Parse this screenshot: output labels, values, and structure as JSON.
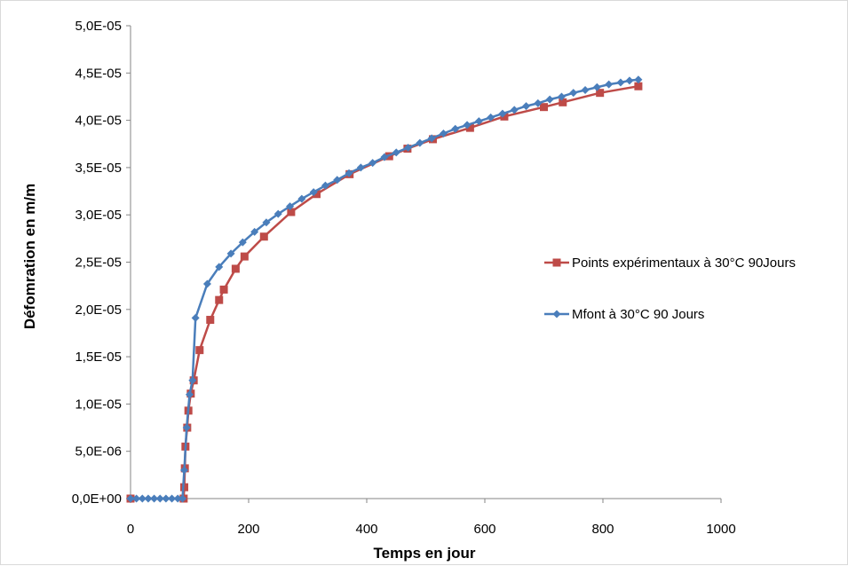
{
  "chart_data": {
    "type": "line",
    "xlabel": "Temps en jour",
    "ylabel": "Défomration en m/m",
    "xlim": [
      0,
      1000
    ],
    "ylim": [
      0,
      5e-05
    ],
    "grid": false,
    "legend_position": "right",
    "x_ticks": [
      {
        "value": 0,
        "label": "0"
      },
      {
        "value": 200,
        "label": "200"
      },
      {
        "value": 400,
        "label": "400"
      },
      {
        "value": 600,
        "label": "600"
      },
      {
        "value": 800,
        "label": "800"
      },
      {
        "value": 1000,
        "label": "1000"
      }
    ],
    "y_ticks": [
      {
        "value": 0,
        "label": "0,0E+00"
      },
      {
        "value": 5e-06,
        "label": "5,0E-06"
      },
      {
        "value": 1e-05,
        "label": "1,0E-05"
      },
      {
        "value": 1.5e-05,
        "label": "1,5E-05"
      },
      {
        "value": 2e-05,
        "label": "2,0E-05"
      },
      {
        "value": 2.5e-05,
        "label": "2,5E-05"
      },
      {
        "value": 3e-05,
        "label": "3,0E-05"
      },
      {
        "value": 3.5e-05,
        "label": "3,5E-05"
      },
      {
        "value": 4e-05,
        "label": "4,0E-05"
      },
      {
        "value": 4.5e-05,
        "label": "4,5E-05"
      },
      {
        "value": 5e-05,
        "label": "5,0E-05"
      }
    ],
    "series": [
      {
        "name": "Points expérimentaux  à 30°C 90Jours",
        "color": "#be4b48",
        "marker": "square",
        "points": [
          [
            0,
            0
          ],
          [
            90,
            0
          ],
          [
            91,
            1.2e-06
          ],
          [
            92,
            3.2e-06
          ],
          [
            93,
            5.5e-06
          ],
          [
            96,
            7.5e-06
          ],
          [
            98,
            9.3e-06
          ],
          [
            102,
            1.11e-05
          ],
          [
            107,
            1.25e-05
          ],
          [
            117,
            1.57e-05
          ],
          [
            135,
            1.89e-05
          ],
          [
            150,
            2.1e-05
          ],
          [
            158,
            2.21e-05
          ],
          [
            178,
            2.43e-05
          ],
          [
            193,
            2.56e-05
          ],
          [
            226,
            2.77e-05
          ],
          [
            272,
            3.03e-05
          ],
          [
            315,
            3.22e-05
          ],
          [
            371,
            3.43e-05
          ],
          [
            438,
            3.62e-05
          ],
          [
            469,
            3.7e-05
          ],
          [
            512,
            3.8e-05
          ],
          [
            575,
            3.92e-05
          ],
          [
            633,
            4.04e-05
          ],
          [
            700,
            4.14e-05
          ],
          [
            732,
            4.19e-05
          ],
          [
            795,
            4.29e-05
          ],
          [
            860,
            4.36e-05
          ]
        ]
      },
      {
        "name": "Mfont à 30°C 90 Jours",
        "color": "#4a7ebb",
        "marker": "diamond",
        "points": [
          [
            0,
            0
          ],
          [
            10,
            0
          ],
          [
            20,
            0
          ],
          [
            30,
            0
          ],
          [
            40,
            0
          ],
          [
            50,
            0
          ],
          [
            60,
            0
          ],
          [
            70,
            0
          ],
          [
            80,
            0
          ],
          [
            88,
            0
          ],
          [
            91,
            3e-06
          ],
          [
            95,
            7.5e-06
          ],
          [
            100,
            1.1e-05
          ],
          [
            105,
            1.25e-05
          ],
          [
            110,
            1.91e-05
          ],
          [
            130,
            2.27e-05
          ],
          [
            150,
            2.45e-05
          ],
          [
            170,
            2.59e-05
          ],
          [
            190,
            2.71e-05
          ],
          [
            210,
            2.82e-05
          ],
          [
            230,
            2.92e-05
          ],
          [
            250,
            3.01e-05
          ],
          [
            270,
            3.09e-05
          ],
          [
            290,
            3.17e-05
          ],
          [
            310,
            3.24e-05
          ],
          [
            330,
            3.31e-05
          ],
          [
            350,
            3.37e-05
          ],
          [
            370,
            3.44e-05
          ],
          [
            390,
            3.5e-05
          ],
          [
            410,
            3.55e-05
          ],
          [
            430,
            3.61e-05
          ],
          [
            450,
            3.66e-05
          ],
          [
            470,
            3.71e-05
          ],
          [
            490,
            3.76e-05
          ],
          [
            510,
            3.81e-05
          ],
          [
            530,
            3.86e-05
          ],
          [
            550,
            3.91e-05
          ],
          [
            570,
            3.95e-05
          ],
          [
            590,
            3.99e-05
          ],
          [
            610,
            4.03e-05
          ],
          [
            630,
            4.07e-05
          ],
          [
            650,
            4.11e-05
          ],
          [
            670,
            4.15e-05
          ],
          [
            690,
            4.18e-05
          ],
          [
            710,
            4.22e-05
          ],
          [
            730,
            4.25e-05
          ],
          [
            750,
            4.29e-05
          ],
          [
            770,
            4.32e-05
          ],
          [
            790,
            4.35e-05
          ],
          [
            810,
            4.38e-05
          ],
          [
            830,
            4.4e-05
          ],
          [
            845,
            4.42e-05
          ],
          [
            860,
            4.43e-05
          ]
        ]
      }
    ]
  }
}
